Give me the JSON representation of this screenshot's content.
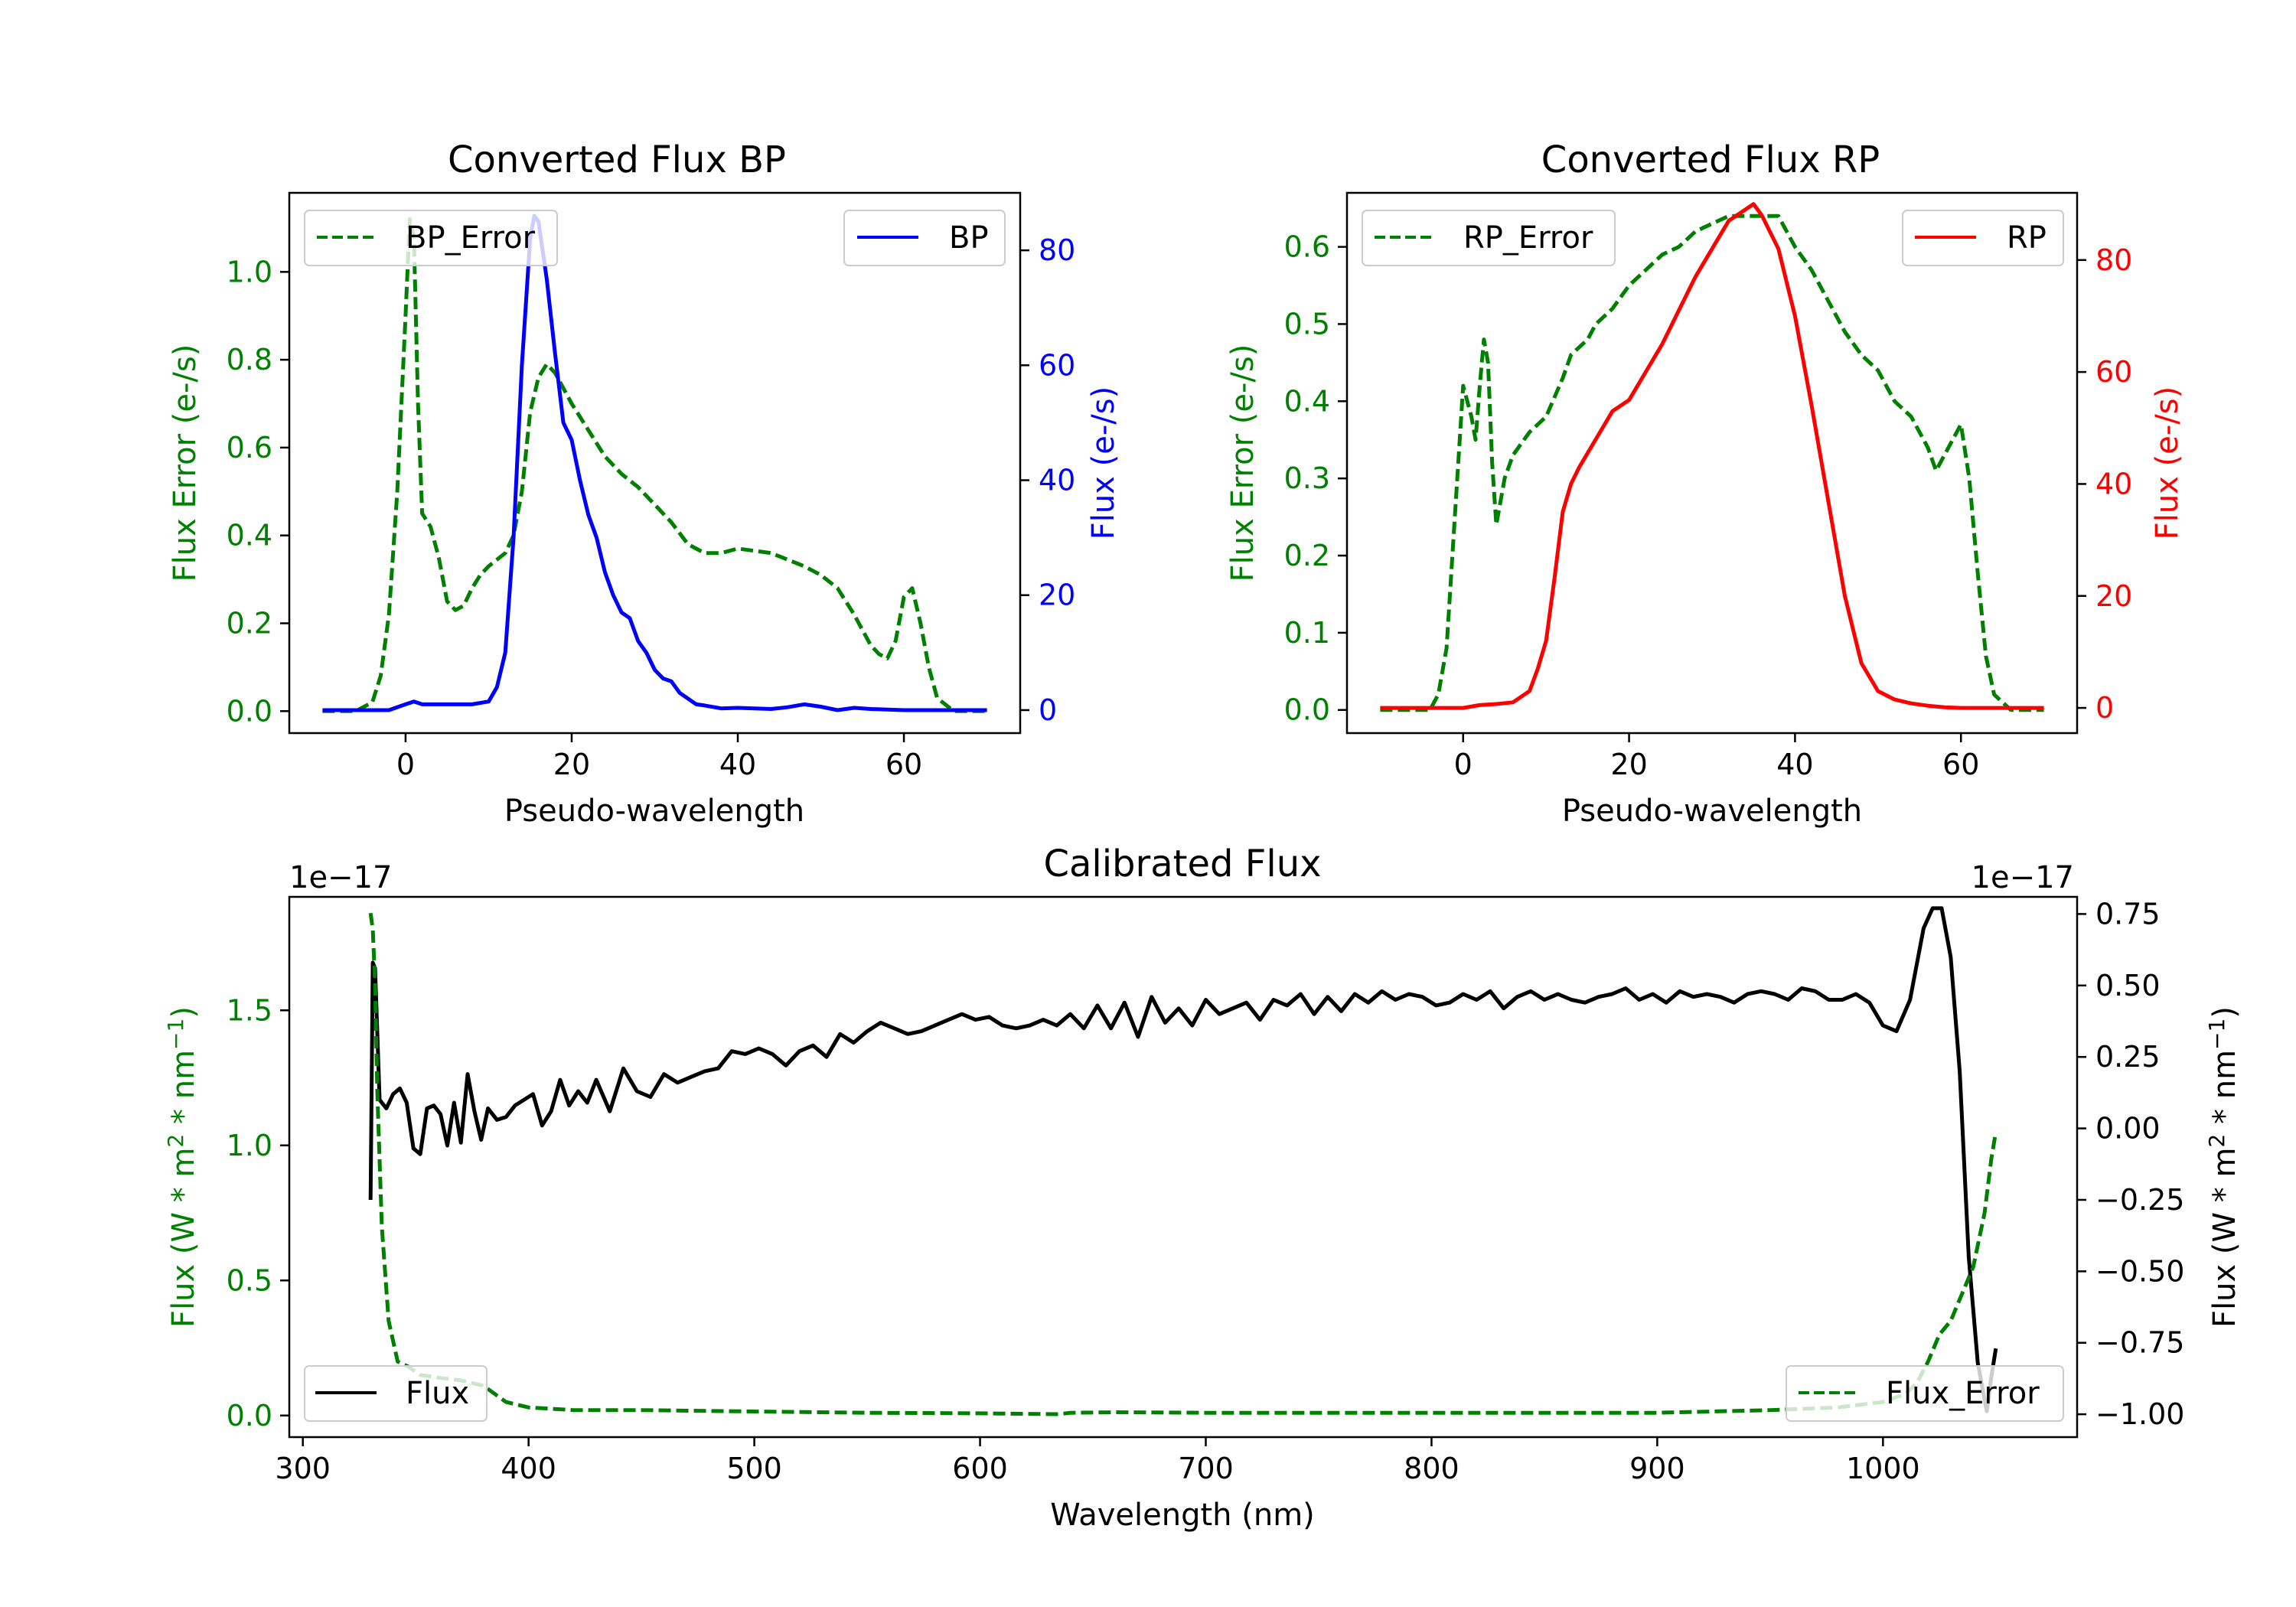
{
  "colors": {
    "error_green": "#008000",
    "bp_blue": "#0000ff",
    "rp_red": "#ff0000",
    "flux_black": "#000000",
    "legend_border": "#cccccc"
  },
  "chart_data": [
    {
      "type": "line",
      "title": "Converted Flux BP",
      "xlabel": "Pseudo-wavelength",
      "ylabel_left": "Flux Error (e-/s)",
      "ylabel_right": "Flux (e-/s)",
      "xlim": [
        -14,
        74
      ],
      "ylim_left": [
        -0.05,
        1.18
      ],
      "ylim_right": [
        -4,
        90
      ],
      "xticks": [
        "0",
        "20",
        "40",
        "60"
      ],
      "xtick_values": [
        0,
        20,
        40,
        60
      ],
      "yticks_left": [
        "0.0",
        "0.2",
        "0.4",
        "0.6",
        "0.8",
        "1.0"
      ],
      "ytick_values_left": [
        0,
        0.2,
        0.4,
        0.6,
        0.8,
        1.0
      ],
      "yticks_right": [
        "0",
        "20",
        "40",
        "60",
        "80"
      ],
      "ytick_values_right": [
        0,
        20,
        40,
        60,
        80
      ],
      "legend_left": {
        "label": "BP_Error",
        "placement": "upper left"
      },
      "legend_right": {
        "label": "BP",
        "placement": "upper right"
      },
      "series": [
        {
          "name": "BP_Error",
          "axis": "left",
          "style": "dashed",
          "color": "#008000",
          "x": [
            -10,
            -6,
            -4,
            -3,
            -2,
            -1,
            0,
            0.5,
            1,
            1.5,
            2,
            3,
            4,
            5,
            6,
            7,
            8,
            9,
            10,
            12,
            13,
            14,
            15,
            16,
            17,
            18,
            20,
            22,
            24,
            26,
            28,
            30,
            32,
            34,
            36,
            38,
            40,
            44,
            48,
            50,
            52,
            54,
            56,
            57,
            58,
            59,
            60,
            61,
            62,
            63,
            64,
            66,
            70
          ],
          "y": [
            0,
            0,
            0.02,
            0.08,
            0.22,
            0.5,
            0.9,
            1.12,
            1.08,
            0.7,
            0.45,
            0.42,
            0.35,
            0.25,
            0.23,
            0.24,
            0.28,
            0.31,
            0.33,
            0.36,
            0.4,
            0.5,
            0.68,
            0.76,
            0.79,
            0.77,
            0.7,
            0.64,
            0.58,
            0.54,
            0.51,
            0.47,
            0.43,
            0.38,
            0.36,
            0.36,
            0.37,
            0.36,
            0.33,
            0.31,
            0.28,
            0.22,
            0.15,
            0.13,
            0.12,
            0.16,
            0.26,
            0.28,
            0.2,
            0.1,
            0.03,
            0,
            0
          ]
        },
        {
          "name": "BP",
          "axis": "right",
          "style": "solid",
          "color": "#0000ff",
          "x": [
            -10,
            -4,
            -2,
            0,
            1,
            2,
            4,
            6,
            8,
            10,
            11,
            12,
            13,
            14,
            15,
            15.5,
            16,
            17,
            18,
            19,
            20,
            21,
            22,
            23,
            24,
            25,
            26,
            27,
            28,
            29,
            30,
            31,
            32,
            33,
            34,
            35,
            36,
            38,
            40,
            42,
            44,
            46,
            48,
            50,
            52,
            54,
            56,
            58,
            60,
            62,
            64,
            66,
            70
          ],
          "y": [
            0,
            0,
            0,
            1,
            1.5,
            1,
            1,
            1,
            1,
            1.5,
            4,
            10,
            30,
            60,
            82,
            86,
            85,
            75,
            62,
            50,
            47,
            40,
            34,
            30,
            24,
            20,
            17,
            16,
            12,
            10,
            7,
            5.5,
            5,
            3,
            2,
            1,
            0.8,
            0.3,
            0.4,
            0.3,
            0.2,
            0.5,
            1,
            0.6,
            0,
            0.4,
            0.2,
            0.1,
            0,
            0,
            0,
            0,
            0
          ]
        }
      ]
    },
    {
      "type": "line",
      "title": "Converted Flux RP",
      "xlabel": "Pseudo-wavelength",
      "ylabel_left": "Flux Error (e-/s)",
      "ylabel_right": "Flux (e-/s)",
      "xlim": [
        -14,
        74
      ],
      "ylim_left": [
        -0.03,
        0.67
      ],
      "ylim_right": [
        -4.5,
        92
      ],
      "xticks": [
        "0",
        "20",
        "40",
        "60"
      ],
      "xtick_values": [
        0,
        20,
        40,
        60
      ],
      "yticks_left": [
        "0.0",
        "0.1",
        "0.2",
        "0.3",
        "0.4",
        "0.5",
        "0.6"
      ],
      "ytick_values_left": [
        0,
        0.1,
        0.2,
        0.3,
        0.4,
        0.5,
        0.6
      ],
      "yticks_right": [
        "0",
        "20",
        "40",
        "60",
        "80"
      ],
      "ytick_values_right": [
        0,
        20,
        40,
        60,
        80
      ],
      "legend_left": {
        "label": "RP_Error",
        "placement": "upper left"
      },
      "legend_right": {
        "label": "RP",
        "placement": "upper right"
      },
      "series": [
        {
          "name": "RP_Error",
          "axis": "left",
          "style": "dashed",
          "color": "#008000",
          "x": [
            -10,
            -4,
            -3,
            -2,
            -1,
            0,
            1,
            1.5,
            2,
            2.5,
            3,
            3.5,
            4,
            5,
            6,
            8,
            10,
            12,
            13,
            14,
            15,
            16,
            18,
            20,
            22,
            24,
            26,
            28,
            30,
            32,
            34,
            36,
            38,
            40,
            42,
            44,
            46,
            48,
            50,
            52,
            54,
            56,
            57,
            58,
            59,
            60,
            61,
            62,
            63,
            64,
            66,
            70
          ],
          "y": [
            0,
            0,
            0.02,
            0.08,
            0.25,
            0.42,
            0.38,
            0.35,
            0.42,
            0.48,
            0.45,
            0.32,
            0.24,
            0.3,
            0.33,
            0.36,
            0.38,
            0.43,
            0.46,
            0.47,
            0.48,
            0.5,
            0.52,
            0.55,
            0.57,
            0.59,
            0.6,
            0.62,
            0.63,
            0.64,
            0.64,
            0.64,
            0.64,
            0.6,
            0.57,
            0.53,
            0.49,
            0.46,
            0.44,
            0.4,
            0.38,
            0.34,
            0.31,
            0.33,
            0.35,
            0.37,
            0.3,
            0.18,
            0.07,
            0.02,
            0,
            0
          ]
        },
        {
          "name": "RP",
          "axis": "right",
          "style": "solid",
          "color": "#ff0000",
          "x": [
            -10,
            0,
            2,
            4,
            6,
            8,
            9,
            10,
            11,
            12,
            13,
            14,
            16,
            18,
            20,
            22,
            24,
            26,
            28,
            30,
            32,
            34,
            35,
            36,
            38,
            40,
            42,
            44,
            46,
            48,
            50,
            52,
            54,
            56,
            58,
            60,
            62,
            66,
            70
          ],
          "y": [
            0,
            0,
            0.5,
            0.7,
            1,
            3,
            7,
            12,
            23,
            35,
            40,
            43,
            48,
            53,
            55,
            60,
            65,
            71,
            77,
            82,
            87,
            89,
            90,
            88,
            82,
            70,
            54,
            37,
            20,
            8,
            3,
            1.5,
            0.8,
            0.4,
            0.1,
            0,
            0,
            0,
            0
          ]
        }
      ]
    },
    {
      "type": "line",
      "title": "Calibrated Flux",
      "xlabel": "Wavelength (nm)",
      "ylabel_left": "Flux (W * m^2 * nm^-1)",
      "ylabel_right": "Flux (W * m^2 * nm^-1)",
      "offset_left": "1e−17",
      "offset_right": "1e−17",
      "xlim": [
        294,
        1086
      ],
      "ylim_left": [
        -0.08,
        1.92
      ],
      "ylim_right": [
        -1.08,
        0.81
      ],
      "xticks": [
        "300",
        "400",
        "500",
        "600",
        "700",
        "800",
        "900",
        "1000"
      ],
      "xtick_values": [
        300,
        400,
        500,
        600,
        700,
        800,
        900,
        1000
      ],
      "yticks_left": [
        "0.0",
        "0.5",
        "1.0",
        "1.5"
      ],
      "ytick_values_left": [
        0,
        0.5,
        1.0,
        1.5
      ],
      "yticks_right": [
        "0.75",
        "0.50",
        "0.25",
        "0.00",
        "−0.25",
        "−0.50",
        "−0.75",
        "−1.00"
      ],
      "ytick_values_right": [
        0.75,
        0.5,
        0.25,
        0,
        -0.25,
        -0.5,
        -0.75,
        -1.0
      ],
      "legend_left": {
        "label": "Flux",
        "placement": "lower left"
      },
      "legend_right": {
        "label": "Flux_Error",
        "placement": "lower right"
      },
      "series": [
        {
          "name": "Flux",
          "axis": "right",
          "style": "solid",
          "color": "#000000",
          "x": [
            330,
            331,
            332,
            334,
            337,
            340,
            343,
            346,
            349,
            352,
            355,
            358,
            361,
            364,
            367,
            370,
            373,
            376,
            379,
            382,
            386,
            390,
            394,
            398,
            402,
            406,
            410,
            414,
            418,
            422,
            426,
            430,
            436,
            442,
            448,
            454,
            460,
            466,
            472,
            478,
            484,
            490,
            496,
            502,
            508,
            514,
            520,
            526,
            532,
            538,
            544,
            550,
            556,
            562,
            568,
            574,
            580,
            586,
            592,
            598,
            604,
            610,
            616,
            622,
            628,
            634,
            640,
            646,
            652,
            658,
            664,
            670,
            676,
            682,
            688,
            694,
            700,
            706,
            712,
            718,
            724,
            730,
            736,
            742,
            748,
            754,
            760,
            766,
            772,
            778,
            784,
            790,
            796,
            802,
            808,
            814,
            820,
            826,
            832,
            838,
            844,
            850,
            856,
            862,
            868,
            874,
            880,
            886,
            892,
            898,
            904,
            910,
            916,
            922,
            928,
            934,
            940,
            946,
            952,
            958,
            964,
            970,
            976,
            982,
            988,
            994,
            1000,
            1006,
            1012,
            1018,
            1022,
            1026,
            1030,
            1034,
            1038,
            1042,
            1046,
            1048,
            1050
          ],
          "y": [
            -0.25,
            0.58,
            0.56,
            0.1,
            0.07,
            0.12,
            0.14,
            0.09,
            -0.07,
            -0.09,
            0.07,
            0.08,
            0.05,
            -0.06,
            0.09,
            -0.05,
            0.19,
            0.06,
            -0.04,
            0.07,
            0.03,
            0.04,
            0.08,
            0.1,
            0.12,
            0.01,
            0.06,
            0.17,
            0.08,
            0.13,
            0.09,
            0.17,
            0.06,
            0.21,
            0.13,
            0.11,
            0.19,
            0.16,
            0.18,
            0.2,
            0.21,
            0.27,
            0.26,
            0.28,
            0.26,
            0.22,
            0.27,
            0.29,
            0.25,
            0.33,
            0.3,
            0.34,
            0.37,
            0.35,
            0.33,
            0.34,
            0.36,
            0.38,
            0.4,
            0.38,
            0.39,
            0.36,
            0.35,
            0.36,
            0.38,
            0.36,
            0.4,
            0.35,
            0.43,
            0.35,
            0.44,
            0.32,
            0.46,
            0.37,
            0.42,
            0.36,
            0.45,
            0.4,
            0.42,
            0.44,
            0.38,
            0.45,
            0.43,
            0.47,
            0.4,
            0.46,
            0.41,
            0.47,
            0.44,
            0.48,
            0.45,
            0.47,
            0.46,
            0.43,
            0.44,
            0.47,
            0.45,
            0.48,
            0.42,
            0.46,
            0.48,
            0.45,
            0.47,
            0.45,
            0.44,
            0.46,
            0.47,
            0.49,
            0.45,
            0.47,
            0.44,
            0.48,
            0.46,
            0.47,
            0.46,
            0.44,
            0.47,
            0.48,
            0.47,
            0.45,
            0.49,
            0.48,
            0.45,
            0.45,
            0.47,
            0.44,
            0.36,
            0.34,
            0.45,
            0.7,
            0.77,
            0.77,
            0.6,
            0.2,
            -0.45,
            -0.82,
            -0.99,
            -0.87,
            -0.77
          ]
        },
        {
          "name": "Flux_Error",
          "axis": "left",
          "style": "dashed",
          "color": "#008000",
          "x": [
            330,
            331,
            332,
            333,
            335,
            338,
            342,
            347,
            352,
            360,
            370,
            380,
            390,
            400,
            420,
            450,
            500,
            550,
            600,
            635,
            640,
            660,
            700,
            750,
            800,
            900,
            950,
            980,
            1000,
            1010,
            1015,
            1020,
            1025,
            1030,
            1035,
            1040,
            1045,
            1048,
            1050
          ],
          "y": [
            1.86,
            1.8,
            1.6,
            1.2,
            0.7,
            0.35,
            0.2,
            0.18,
            0.15,
            0.14,
            0.13,
            0.11,
            0.05,
            0.03,
            0.02,
            0.02,
            0.015,
            0.01,
            0.008,
            0.005,
            0.01,
            0.012,
            0.01,
            0.01,
            0.01,
            0.01,
            0.02,
            0.03,
            0.05,
            0.08,
            0.12,
            0.2,
            0.3,
            0.35,
            0.45,
            0.55,
            0.75,
            0.95,
            1.05
          ]
        }
      ]
    }
  ]
}
